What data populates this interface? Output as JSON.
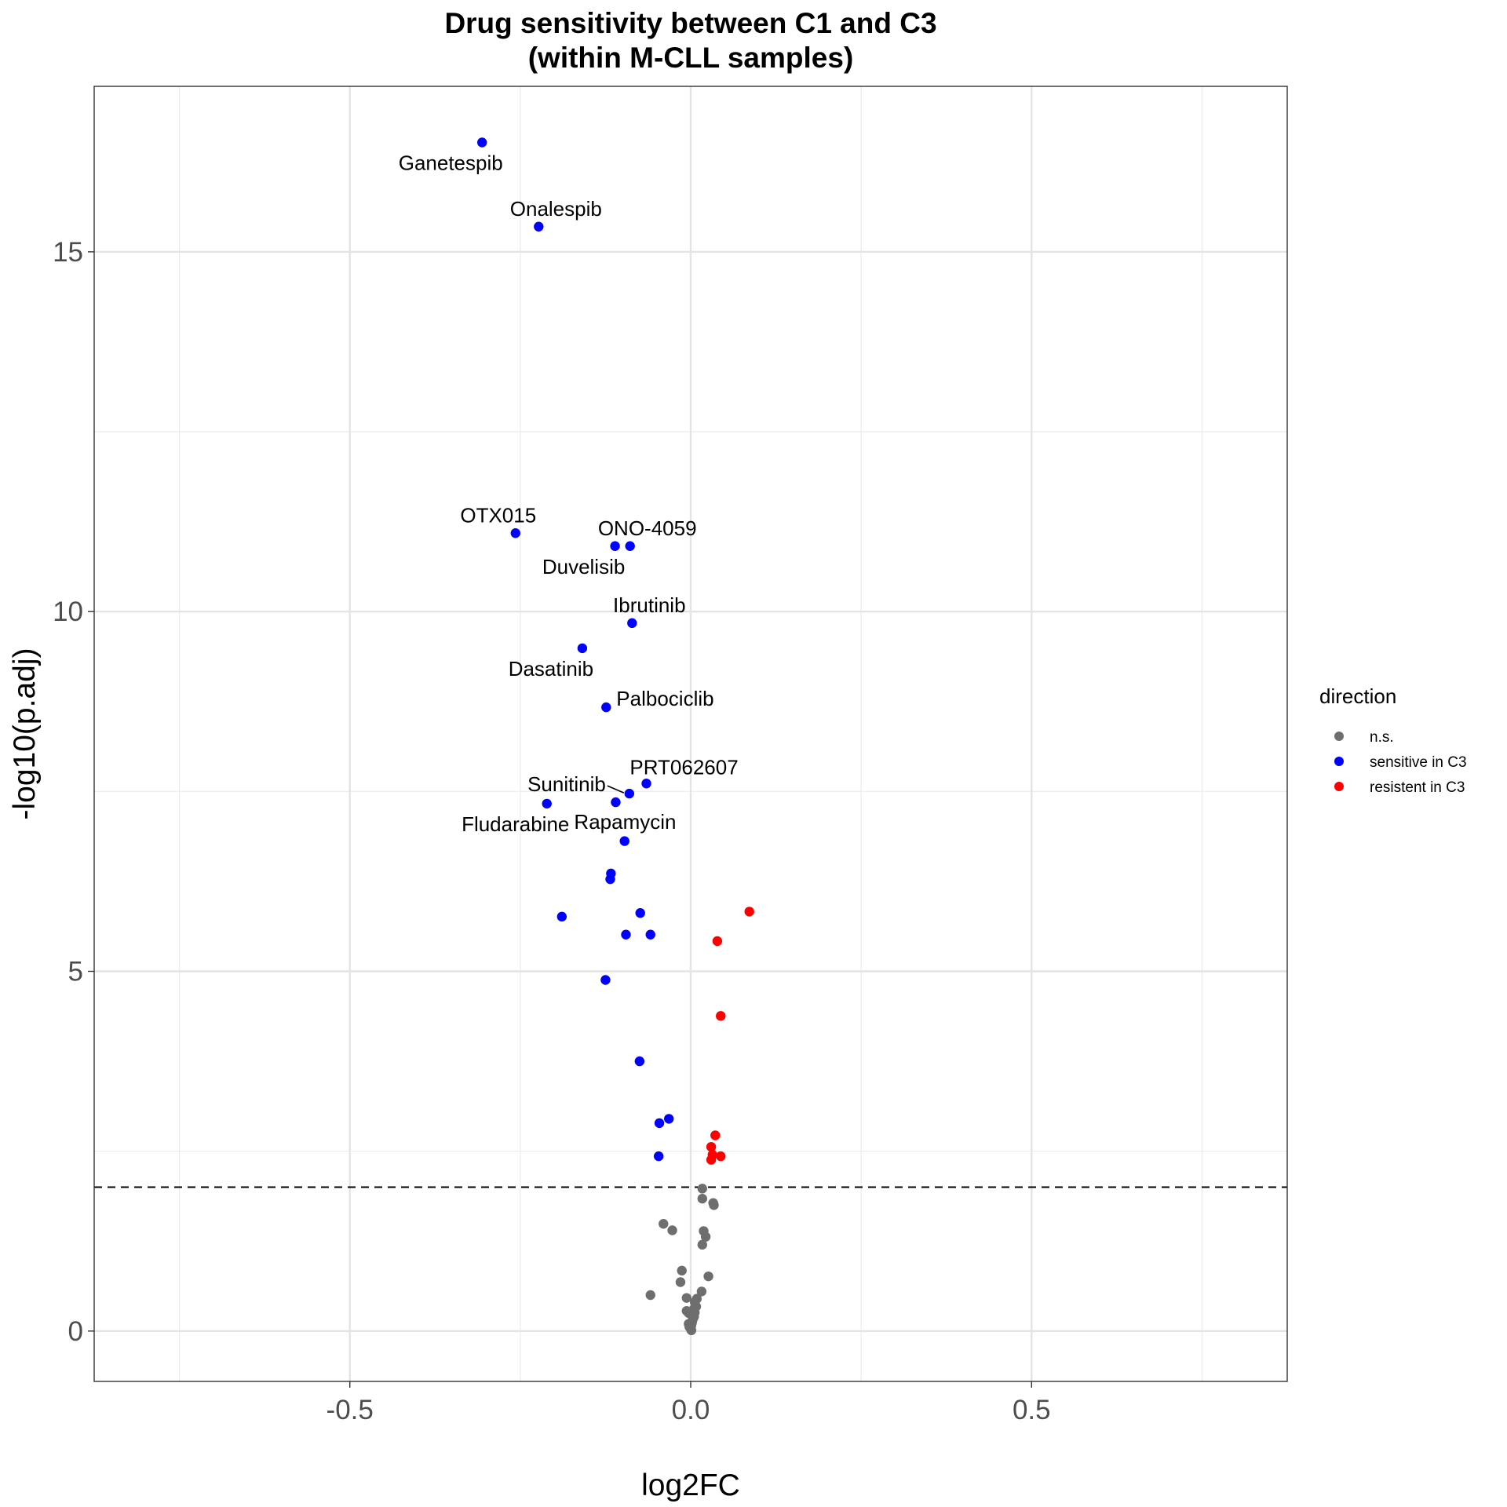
{
  "chart_data": {
    "type": "scatter",
    "title": [
      "Drug sensitivity between C1 and C3",
      "(within M-CLL samples)"
    ],
    "xlabel": "log2FC",
    "ylabel": "-log10(p.adj)",
    "xlim": [
      -0.875,
      0.875
    ],
    "ylim": [
      -0.7,
      17.3
    ],
    "xticks": [
      -0.5,
      0.0,
      0.5
    ],
    "xtick_labels": [
      "-0.5",
      "0.0",
      "0.5"
    ],
    "yticks": [
      0,
      5,
      10,
      15
    ],
    "ytick_labels": [
      "0",
      "5",
      "10",
      "15"
    ],
    "x_minor_gridlines": [
      -0.75,
      -0.25,
      0.25,
      0.75
    ],
    "y_minor_gridlines": [
      2.5,
      7.5,
      12.5
    ],
    "threshold_line": {
      "y": 2.0,
      "style": "dashed"
    },
    "grid": true,
    "legend": {
      "title": "direction",
      "placement": "right",
      "entries": [
        {
          "key": "ns",
          "label": "n.s.",
          "color": "#6e6e6e"
        },
        {
          "key": "sens",
          "label": "sensitive in C3",
          "color": "#0000ff"
        },
        {
          "key": "res",
          "label": "resistent in C3",
          "color": "#ff0000"
        }
      ]
    },
    "series": [
      {
        "name": "sensitive in C3",
        "color": "#0000ff",
        "points": [
          {
            "x": -0.306,
            "y": 16.52,
            "label": "Ganetespib",
            "label_pos": "below-left"
          },
          {
            "x": -0.223,
            "y": 15.35,
            "label": "Onalespib",
            "label_pos": "above"
          },
          {
            "x": -0.257,
            "y": 11.09,
            "label": "OTX015",
            "label_pos": "above-left"
          },
          {
            "x": -0.111,
            "y": 10.91,
            "label": "Duvelisib",
            "label_pos": "below-left"
          },
          {
            "x": -0.089,
            "y": 10.91,
            "label": "ONO-4059",
            "label_pos": "above"
          },
          {
            "x": -0.086,
            "y": 9.84,
            "label": "Ibrutinib",
            "label_pos": "above"
          },
          {
            "x": -0.159,
            "y": 9.49,
            "label": "Dasatinib",
            "label_pos": "below-left"
          },
          {
            "x": -0.124,
            "y": 8.67,
            "label": "Palbociclib",
            "label_pos": "right"
          },
          {
            "x": -0.065,
            "y": 7.61,
            "label": "PRT062607",
            "label_pos": "above-right"
          },
          {
            "x": -0.09,
            "y": 7.47,
            "label": "Sunitinib",
            "label_pos": "left-leader"
          },
          {
            "x": -0.11,
            "y": 7.35,
            "label": "Rapamycin",
            "label_pos": "below"
          },
          {
            "x": -0.211,
            "y": 7.33,
            "label": "Fludarabine",
            "label_pos": "below-left"
          },
          {
            "x": -0.097,
            "y": 6.81
          },
          {
            "x": -0.117,
            "y": 6.36
          },
          {
            "x": -0.118,
            "y": 6.28
          },
          {
            "x": -0.189,
            "y": 5.76
          },
          {
            "x": -0.074,
            "y": 5.81
          },
          {
            "x": -0.095,
            "y": 5.51
          },
          {
            "x": -0.059,
            "y": 5.51
          },
          {
            "x": -0.125,
            "y": 4.88
          },
          {
            "x": -0.075,
            "y": 3.75
          },
          {
            "x": -0.032,
            "y": 2.95
          },
          {
            "x": -0.046,
            "y": 2.89
          },
          {
            "x": -0.047,
            "y": 2.43
          }
        ]
      },
      {
        "name": "resistent in C3",
        "color": "#ff0000",
        "points": [
          {
            "x": 0.086,
            "y": 5.83
          },
          {
            "x": 0.039,
            "y": 5.42
          },
          {
            "x": 0.044,
            "y": 4.38
          },
          {
            "x": 0.036,
            "y": 2.72
          },
          {
            "x": 0.03,
            "y": 2.56
          },
          {
            "x": 0.032,
            "y": 2.45
          },
          {
            "x": 0.044,
            "y": 2.43
          },
          {
            "x": 0.03,
            "y": 2.38
          }
        ]
      },
      {
        "name": "n.s.",
        "color": "#6e6e6e",
        "points": [
          {
            "x": 0.017,
            "y": 1.98
          },
          {
            "x": 0.017,
            "y": 1.84
          },
          {
            "x": 0.033,
            "y": 1.78
          },
          {
            "x": 0.034,
            "y": 1.75
          },
          {
            "x": -0.04,
            "y": 1.49
          },
          {
            "x": -0.027,
            "y": 1.4
          },
          {
            "x": 0.019,
            "y": 1.39
          },
          {
            "x": 0.022,
            "y": 1.31
          },
          {
            "x": 0.017,
            "y": 1.2
          },
          {
            "x": -0.013,
            "y": 0.84
          },
          {
            "x": 0.026,
            "y": 0.76
          },
          {
            "x": -0.015,
            "y": 0.68
          },
          {
            "x": 0.016,
            "y": 0.55
          },
          {
            "x": -0.059,
            "y": 0.5
          },
          {
            "x": -0.006,
            "y": 0.46
          },
          {
            "x": 0.009,
            "y": 0.45
          },
          {
            "x": 0.006,
            "y": 0.4
          },
          {
            "x": 0.008,
            "y": 0.34
          },
          {
            "x": 0.004,
            "y": 0.3
          },
          {
            "x": -0.006,
            "y": 0.28
          },
          {
            "x": 0.006,
            "y": 0.26
          },
          {
            "x": -0.003,
            "y": 0.25
          },
          {
            "x": 0.005,
            "y": 0.2
          },
          {
            "x": 0.003,
            "y": 0.16
          },
          {
            "x": 0.002,
            "y": 0.12
          },
          {
            "x": -0.003,
            "y": 0.1
          },
          {
            "x": 0.001,
            "y": 0.08
          },
          {
            "x": -0.002,
            "y": 0.06
          },
          {
            "x": 0.0,
            "y": 0.03
          },
          {
            "x": 0.001,
            "y": 0.01
          }
        ]
      }
    ]
  }
}
